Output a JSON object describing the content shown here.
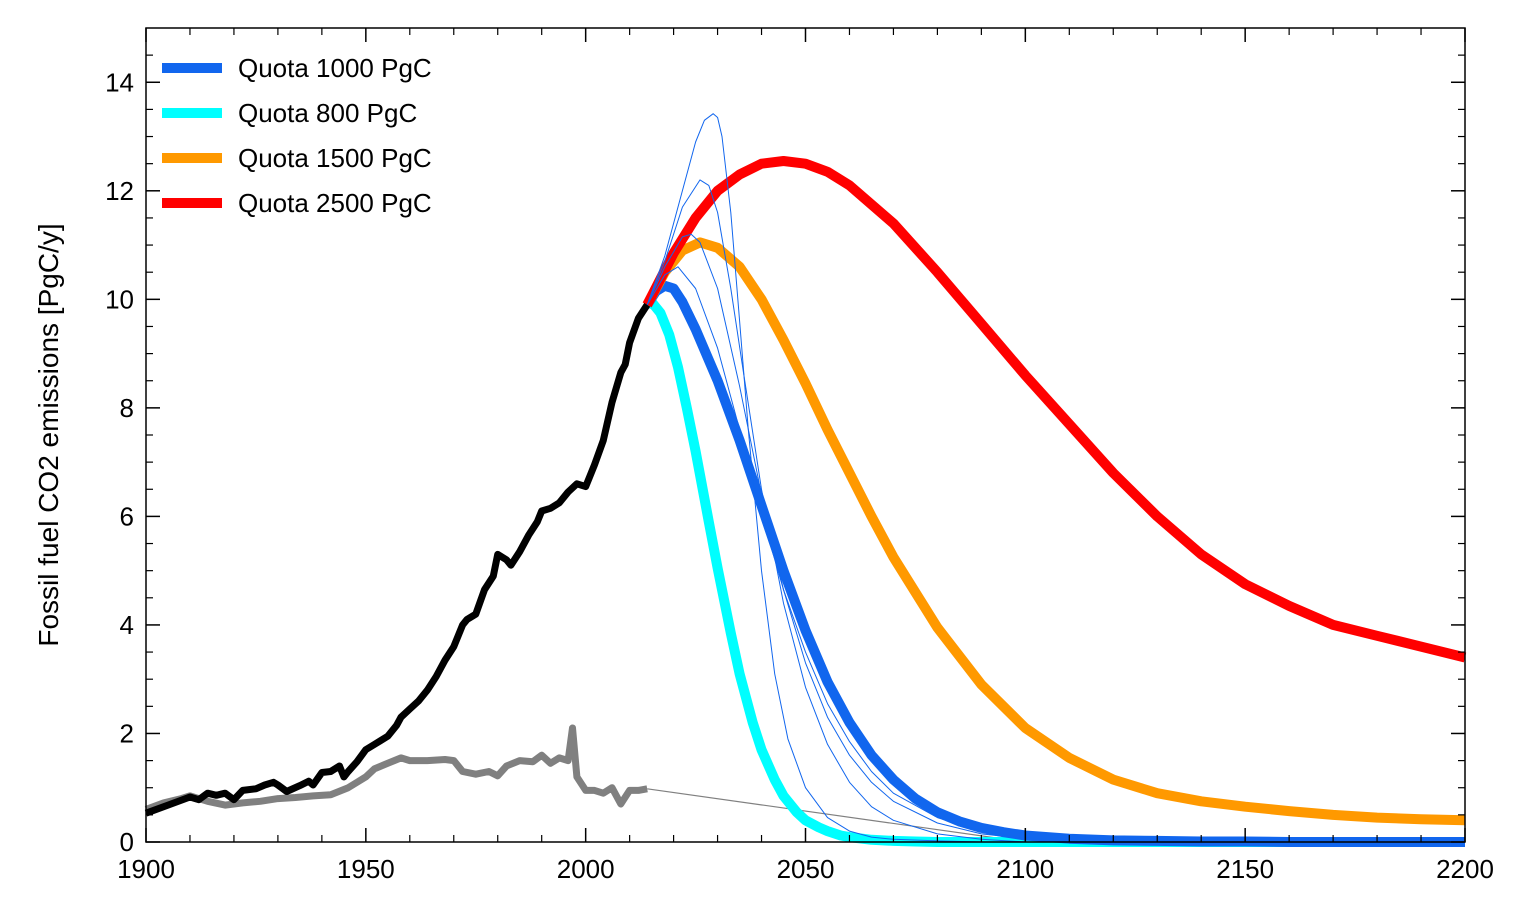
{
  "chart_data": {
    "type": "line",
    "title": "",
    "xlabel": "",
    "ylabel": "Fossil fuel CO2 emissions [PgC/y]",
    "xlim": [
      1900,
      2200
    ],
    "ylim": [
      0,
      15
    ],
    "x_ticks": [
      1900,
      1950,
      2000,
      2050,
      2100,
      2150,
      2200
    ],
    "y_ticks": [
      0,
      2,
      4,
      6,
      8,
      10,
      12,
      14
    ],
    "grid": false,
    "legend_position": "top-left",
    "legend": [
      {
        "label": "Quota 1000 PgC",
        "color": "#1166ee"
      },
      {
        "label": "Quota 800 PgC",
        "color": "#00ffff"
      },
      {
        "label": "Quota 1500 PgC",
        "color": "#ff9900"
      },
      {
        "label": "Quota 2500 PgC",
        "color": "#ff0000"
      }
    ],
    "series": [
      {
        "color": "#000000",
        "x": [
          1900,
          1905,
          1910,
          1912,
          1914,
          1916,
          1918,
          1920,
          1922,
          1925,
          1927,
          1929,
          1930,
          1932,
          1935,
          1937,
          1938,
          1940,
          1942,
          1944,
          1945,
          1946,
          1948,
          1950,
          1952,
          1955,
          1957,
          1958,
          1960,
          1962,
          1964,
          1966,
          1968,
          1970,
          1972,
          1973,
          1975,
          1977,
          1979,
          1980,
          1982,
          1983,
          1985,
          1987,
          1989,
          1990,
          1992,
          1994,
          1996,
          1998,
          2000,
          2002,
          2004,
          2006,
          2008,
          2009,
          2010,
          2012,
          2014
        ],
        "y": [
          0.53,
          0.68,
          0.83,
          0.78,
          0.9,
          0.86,
          0.9,
          0.78,
          0.95,
          0.98,
          1.05,
          1.1,
          1.05,
          0.93,
          1.04,
          1.12,
          1.05,
          1.28,
          1.3,
          1.4,
          1.2,
          1.3,
          1.48,
          1.7,
          1.8,
          1.95,
          2.15,
          2.3,
          2.45,
          2.6,
          2.8,
          3.05,
          3.35,
          3.6,
          4.0,
          4.1,
          4.2,
          4.65,
          4.9,
          5.3,
          5.2,
          5.1,
          5.35,
          5.65,
          5.9,
          6.1,
          6.15,
          6.25,
          6.45,
          6.6,
          6.55,
          6.95,
          7.4,
          8.1,
          8.65,
          8.8,
          9.2,
          9.65,
          9.9
        ]
      },
      {
        "color": "#808080",
        "x": [
          1900,
          1904,
          1908,
          1910,
          1914,
          1918,
          1922,
          1926,
          1930,
          1934,
          1938,
          1942,
          1946,
          1948,
          1950,
          1952,
          1955,
          1958,
          1960,
          1964,
          1968,
          1970,
          1972,
          1975,
          1978,
          1980,
          1982,
          1985,
          1988,
          1990,
          1992,
          1994,
          1996,
          1997,
          1998,
          2000,
          2002,
          2004,
          2006,
          2008,
          2010,
          2012,
          2014
        ],
        "y": [
          0.6,
          0.72,
          0.8,
          0.85,
          0.75,
          0.68,
          0.72,
          0.75,
          0.8,
          0.82,
          0.85,
          0.87,
          1.0,
          1.1,
          1.2,
          1.35,
          1.45,
          1.55,
          1.5,
          1.5,
          1.52,
          1.5,
          1.3,
          1.25,
          1.3,
          1.22,
          1.4,
          1.5,
          1.48,
          1.6,
          1.45,
          1.55,
          1.5,
          2.1,
          1.2,
          0.95,
          0.95,
          0.9,
          1.0,
          0.7,
          0.95,
          0.95,
          0.98
        ]
      },
      {
        "color": "#808080",
        "x": [
          2014,
          2100
        ],
        "y": [
          0.98,
          0.0
        ]
      },
      {
        "name": "Quota 1000 PgC",
        "color": "#1166ee",
        "x": [
          2014,
          2016,
          2018,
          2020,
          2022,
          2025,
          2030,
          2035,
          2040,
          2045,
          2050,
          2055,
          2060,
          2065,
          2070,
          2075,
          2080,
          2085,
          2090,
          2095,
          2100,
          2110,
          2120,
          2130,
          2140,
          2150,
          2160,
          2180,
          2200
        ],
        "y": [
          9.9,
          10.15,
          10.25,
          10.2,
          9.95,
          9.45,
          8.5,
          7.4,
          6.2,
          5.0,
          3.9,
          2.95,
          2.2,
          1.6,
          1.15,
          0.8,
          0.55,
          0.38,
          0.26,
          0.18,
          0.12,
          0.06,
          0.03,
          0.02,
          0.01,
          0.01,
          0.0,
          0.0,
          0.0
        ]
      },
      {
        "name": "Quota 800 PgC",
        "color": "#00ffff",
        "x": [
          2014,
          2015,
          2017,
          2019,
          2021,
          2023,
          2025,
          2028,
          2030,
          2033,
          2035,
          2038,
          2040,
          2043,
          2045,
          2048,
          2050,
          2053,
          2055,
          2058,
          2060,
          2065,
          2070,
          2075,
          2080,
          2090,
          2100,
          2150,
          2200
        ],
        "y": [
          9.9,
          9.95,
          9.75,
          9.35,
          8.75,
          8.0,
          7.2,
          5.9,
          5.05,
          3.85,
          3.1,
          2.2,
          1.7,
          1.15,
          0.85,
          0.55,
          0.4,
          0.27,
          0.2,
          0.12,
          0.09,
          0.04,
          0.02,
          0.01,
          0.0,
          0.0,
          0.0,
          0.0,
          0.0
        ]
      },
      {
        "name": "Quota 1500 PgC",
        "color": "#ff9900",
        "x": [
          2014,
          2018,
          2022,
          2026,
          2030,
          2035,
          2040,
          2045,
          2050,
          2055,
          2060,
          2065,
          2070,
          2080,
          2090,
          2100,
          2110,
          2120,
          2130,
          2140,
          2150,
          2160,
          2170,
          2180,
          2190,
          2200
        ],
        "y": [
          9.9,
          10.5,
          10.9,
          11.05,
          10.95,
          10.6,
          10.0,
          9.25,
          8.45,
          7.6,
          6.8,
          6.0,
          5.25,
          3.95,
          2.9,
          2.1,
          1.55,
          1.15,
          0.9,
          0.75,
          0.65,
          0.57,
          0.5,
          0.45,
          0.42,
          0.4
        ]
      },
      {
        "name": "Quota 2500 PgC",
        "color": "#ff0000",
        "x": [
          2014,
          2020,
          2025,
          2030,
          2035,
          2040,
          2045,
          2050,
          2055,
          2060,
          2070,
          2080,
          2090,
          2100,
          2110,
          2120,
          2130,
          2140,
          2150,
          2160,
          2170,
          2180,
          2190,
          2200
        ],
        "y": [
          9.9,
          10.85,
          11.5,
          12.0,
          12.3,
          12.5,
          12.55,
          12.5,
          12.35,
          12.1,
          11.4,
          10.5,
          9.55,
          8.6,
          7.7,
          6.8,
          6.0,
          5.3,
          4.75,
          4.35,
          4.0,
          3.8,
          3.6,
          3.4
        ]
      },
      {
        "color": "#1166ee",
        "x": [
          2014,
          2018,
          2022,
          2025,
          2027,
          2029,
          2030,
          2031,
          2033,
          2035,
          2037,
          2040,
          2043,
          2046,
          2050,
          2055,
          2060,
          2065,
          2070,
          2080,
          2090,
          2100
        ],
        "y": [
          9.9,
          10.8,
          12.0,
          12.9,
          13.3,
          13.42,
          13.35,
          13.0,
          11.6,
          9.6,
          7.6,
          5.0,
          3.1,
          1.9,
          1.0,
          0.45,
          0.2,
          0.09,
          0.05,
          0.02,
          0.0,
          0.0
        ]
      },
      {
        "color": "#1166ee",
        "x": [
          2014,
          2018,
          2022,
          2026,
          2028,
          2030,
          2033,
          2036,
          2040,
          2045,
          2050,
          2055,
          2060,
          2065,
          2070,
          2080,
          2090,
          2100
        ],
        "y": [
          9.9,
          10.7,
          11.7,
          12.2,
          12.1,
          11.6,
          10.2,
          8.6,
          6.5,
          4.4,
          2.85,
          1.8,
          1.1,
          0.65,
          0.4,
          0.15,
          0.05,
          0.0
        ]
      },
      {
        "color": "#1166ee",
        "x": [
          2014,
          2018,
          2022,
          2024,
          2026,
          2030,
          2035,
          2040,
          2045,
          2050,
          2055,
          2060,
          2065,
          2070,
          2080,
          2090,
          2100,
          2110
        ],
        "y": [
          9.9,
          10.6,
          11.15,
          11.2,
          11.05,
          10.2,
          8.4,
          6.4,
          4.65,
          3.3,
          2.3,
          1.6,
          1.1,
          0.75,
          0.35,
          0.15,
          0.06,
          0.02
        ]
      },
      {
        "color": "#1166ee",
        "x": [
          2014,
          2018,
          2021,
          2025,
          2030,
          2035,
          2040,
          2045,
          2050,
          2055,
          2060,
          2065,
          2070,
          2080,
          2090,
          2100,
          2110
        ],
        "y": [
          9.9,
          10.45,
          10.6,
          10.2,
          9.1,
          7.6,
          6.05,
          4.65,
          3.5,
          2.55,
          1.85,
          1.3,
          0.9,
          0.45,
          0.2,
          0.08,
          0.03
        ]
      }
    ]
  }
}
